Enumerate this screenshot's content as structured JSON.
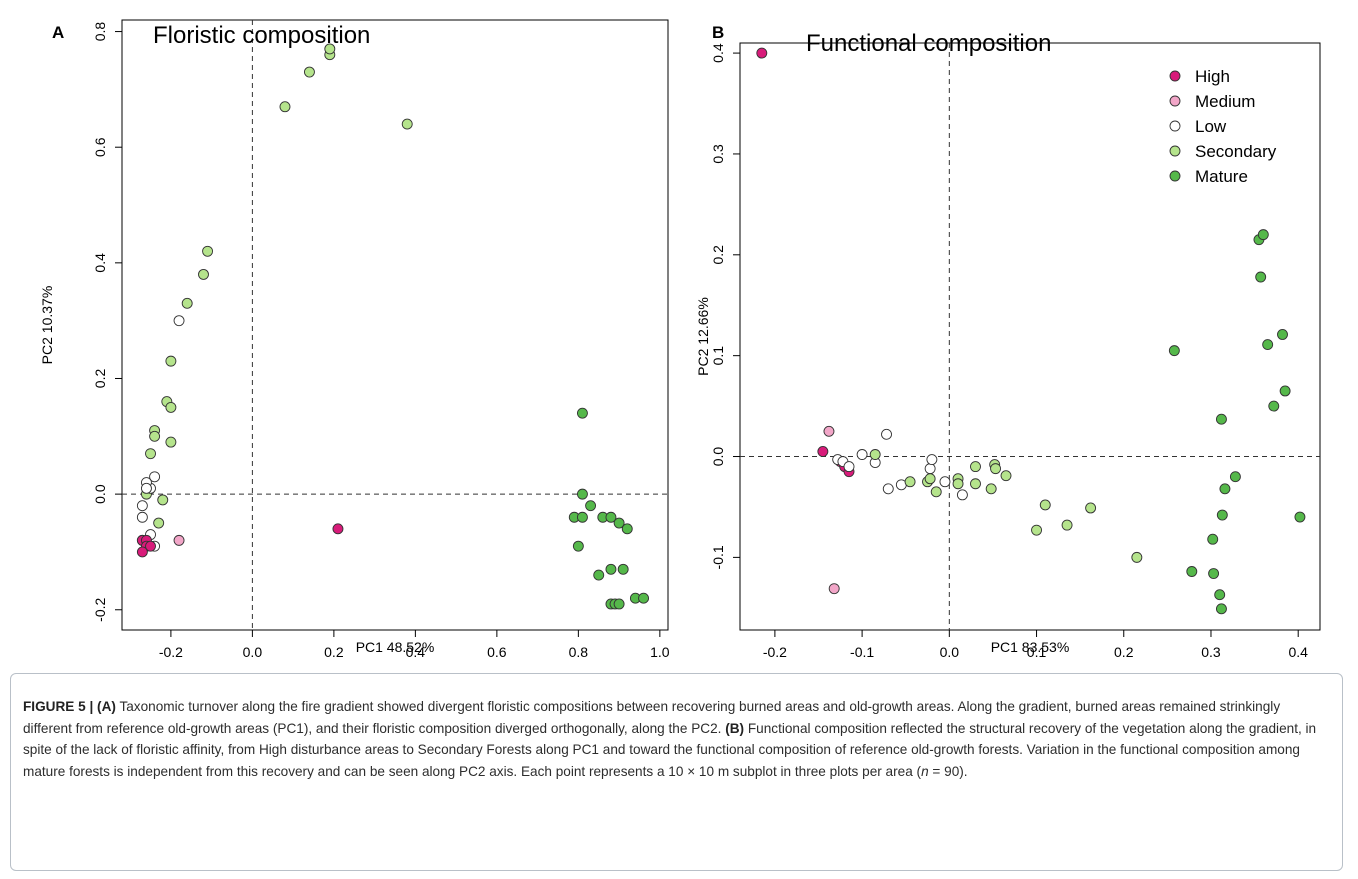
{
  "figure": {
    "panels": [
      {
        "letter": "A",
        "title": "Floristic composition",
        "xlabel": "PC1 48.52%",
        "ylabel": "PC2 10.37%"
      },
      {
        "letter": "B",
        "title": "Functional composition",
        "xlabel": "PC1 83.53%",
        "ylabel": "PC2 12.66%"
      }
    ],
    "legend": [
      "High",
      "Medium",
      "Low",
      "Secondary",
      "Mature"
    ],
    "colors": {
      "High": "#d81b7a",
      "Medium": "#f2a6c8",
      "Low": "#ffffff",
      "Secondary": "#b5e48c",
      "Mature": "#55b84a",
      "point_stroke": "#333333"
    }
  },
  "caption": {
    "label": "FIGURE 5 | (A)",
    "text_a": "Taxonomic turnover along the fire gradient showed divergent floristic compositions between recovering burned areas and old-growth areas. Along the gradient, burned areas remained strinkingly different from reference old-growth areas (PC1), and their floristic composition diverged orthogonally, along the PC2.",
    "label_b": "(B)",
    "text_b": "Functional composition reflected the structural recovery of the vegetation along the gradient, in spite of the lack of floristic affinity, from High disturbance areas to Secondary Forests along PC1 and toward the functional composition of reference old-growth forests. Variation in the functional composition among mature forests is independent from this recovery and can be seen along PC2 axis. Each point represents a 10 × 10 m subplot in three plots per area (",
    "n_symbol": "n",
    "text_end": " = 90)."
  },
  "chart_data": [
    {
      "type": "scatter",
      "title": "Floristic composition",
      "xlabel": "PC1 48.52%",
      "ylabel": "PC2 10.37%",
      "xlim": [
        -0.32,
        1.02
      ],
      "ylim": [
        -0.235,
        0.82
      ],
      "xticks": [
        -0.2,
        0.0,
        0.2,
        0.4,
        0.6,
        0.8,
        1.0
      ],
      "xtick_labels": [
        "-0.2",
        "0.0",
        "0.2",
        "0.4",
        "0.6",
        "0.8",
        "1.0"
      ],
      "yticks": [
        -0.2,
        0.0,
        0.2,
        0.4,
        0.6,
        0.8
      ],
      "ytick_labels": [
        "-0.2",
        "0.0",
        "0.2",
        "0.4",
        "0.6",
        "0.8"
      ],
      "reference_lines": {
        "x": 0,
        "y": 0
      },
      "series": [
        {
          "name": "Secondary",
          "x": [
            0.08,
            0.14,
            0.19,
            0.19,
            0.38,
            -0.11,
            -0.12,
            -0.16,
            -0.2,
            -0.21,
            -0.2,
            -0.24,
            -0.24,
            -0.25,
            -0.2,
            -0.22,
            -0.23,
            -0.26
          ],
          "y": [
            0.67,
            0.73,
            0.76,
            0.77,
            0.64,
            0.42,
            0.38,
            0.33,
            0.23,
            0.16,
            0.15,
            0.11,
            0.1,
            0.07,
            0.09,
            -0.01,
            -0.05,
            0.0
          ]
        },
        {
          "name": "Low",
          "x": [
            -0.18,
            -0.24,
            -0.25,
            -0.26,
            -0.26,
            -0.27,
            -0.27,
            -0.25,
            -0.24
          ],
          "y": [
            0.3,
            0.03,
            0.01,
            0.02,
            0.01,
            -0.02,
            -0.04,
            -0.07,
            -0.09
          ]
        },
        {
          "name": "Medium",
          "x": [
            -0.18,
            -0.27
          ],
          "y": [
            -0.08,
            -0.08
          ]
        },
        {
          "name": "High",
          "x": [
            0.21,
            -0.27,
            -0.26,
            -0.26,
            -0.27,
            -0.25
          ],
          "y": [
            -0.06,
            -0.08,
            -0.08,
            -0.09,
            -0.1,
            -0.09
          ]
        },
        {
          "name": "Mature",
          "x": [
            0.81,
            0.81,
            0.83,
            0.79,
            0.8,
            0.81,
            0.86,
            0.88,
            0.9,
            0.92,
            0.85,
            0.88,
            0.91,
            0.88,
            0.89,
            0.9,
            0.94,
            0.96
          ],
          "y": [
            0.14,
            0.0,
            -0.02,
            -0.04,
            -0.09,
            -0.04,
            -0.04,
            -0.04,
            -0.05,
            -0.06,
            -0.14,
            -0.13,
            -0.13,
            -0.19,
            -0.19,
            -0.19,
            -0.18,
            -0.18
          ]
        }
      ]
    },
    {
      "type": "scatter",
      "title": "Functional composition",
      "xlabel": "PC1 83.53%",
      "ylabel": "PC2 12.66%",
      "xlim": [
        -0.24,
        0.425
      ],
      "ylim": [
        -0.172,
        0.41
      ],
      "xticks": [
        -0.2,
        -0.1,
        0.0,
        0.1,
        0.2,
        0.3,
        0.4
      ],
      "xtick_labels": [
        "-0.2",
        "-0.1",
        "0.0",
        "0.1",
        "0.2",
        "0.3",
        "0.4"
      ],
      "yticks": [
        -0.1,
        0.0,
        0.1,
        0.2,
        0.3,
        0.4
      ],
      "ytick_labels": [
        "-0.1",
        "0.0",
        "0.1",
        "0.2",
        "0.3",
        "0.4"
      ],
      "reference_lines": {
        "x": 0,
        "y": 0
      },
      "legend_position": "top-right",
      "series": [
        {
          "name": "High",
          "x": [
            -0.215,
            -0.145,
            -0.125,
            -0.12,
            -0.115
          ],
          "y": [
            0.4,
            0.005,
            -0.005,
            -0.01,
            -0.015
          ]
        },
        {
          "name": "Medium",
          "x": [
            -0.138,
            -0.132
          ],
          "y": [
            0.025,
            -0.131
          ]
        },
        {
          "name": "Low",
          "x": [
            -0.128,
            -0.122,
            -0.115,
            -0.1,
            -0.085,
            -0.072,
            -0.07,
            -0.055,
            -0.022,
            -0.02,
            -0.005,
            0.015
          ],
          "y": [
            -0.003,
            -0.005,
            -0.01,
            0.002,
            -0.006,
            0.022,
            -0.032,
            -0.028,
            -0.012,
            -0.003,
            -0.025,
            -0.038
          ]
        },
        {
          "name": "Secondary",
          "x": [
            -0.085,
            -0.045,
            -0.025,
            -0.022,
            -0.015,
            0.01,
            0.01,
            0.03,
            0.03,
            0.048,
            0.052,
            0.053,
            0.065,
            0.1,
            0.11,
            0.135,
            0.162,
            0.215
          ],
          "y": [
            0.002,
            -0.025,
            -0.025,
            -0.022,
            -0.035,
            -0.022,
            -0.027,
            -0.01,
            -0.027,
            -0.032,
            -0.008,
            -0.012,
            -0.019,
            -0.073,
            -0.048,
            -0.068,
            -0.051,
            -0.1
          ]
        },
        {
          "name": "Mature",
          "x": [
            0.258,
            0.355,
            0.36,
            0.357,
            0.365,
            0.382,
            0.372,
            0.385,
            0.312,
            0.316,
            0.328,
            0.402,
            0.313,
            0.302,
            0.278,
            0.303,
            0.31,
            0.312
          ],
          "y": [
            0.105,
            0.215,
            0.22,
            0.178,
            0.111,
            0.121,
            0.05,
            0.065,
            0.037,
            -0.032,
            -0.02,
            -0.06,
            -0.058,
            -0.082,
            -0.114,
            -0.116,
            -0.137,
            -0.151
          ]
        }
      ]
    }
  ]
}
